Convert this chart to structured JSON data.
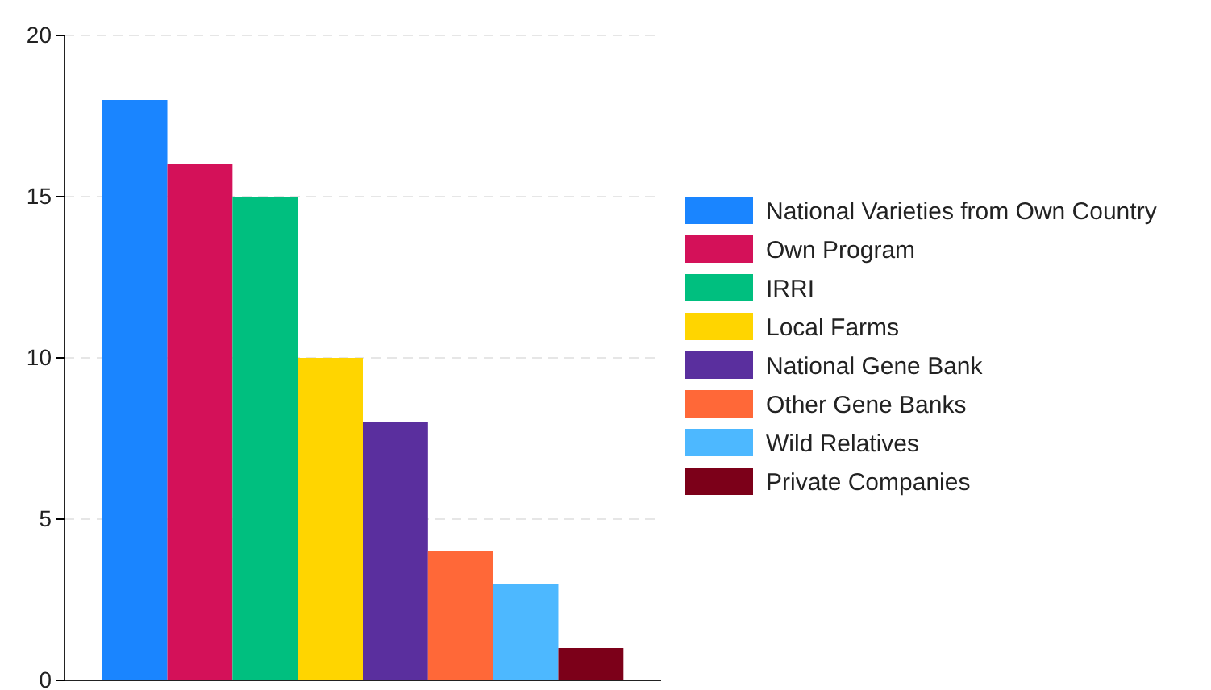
{
  "chart_data": {
    "type": "bar",
    "categories": [
      null
    ],
    "series": [
      {
        "name": "National Varieties from Own Country",
        "color": "#1a85ff",
        "values": [
          18
        ]
      },
      {
        "name": "Own Program",
        "color": "#d41159",
        "values": [
          16
        ]
      },
      {
        "name": "IRRI",
        "color": "#00bf7f",
        "values": [
          15
        ]
      },
      {
        "name": "Local Farms",
        "color": "#ffd500",
        "values": [
          10
        ]
      },
      {
        "name": "National Gene Bank",
        "color": "#5a2f9e",
        "values": [
          8
        ]
      },
      {
        "name": "Other Gene Banks",
        "color": "#ff6838",
        "values": [
          4
        ]
      },
      {
        "name": "Wild Relatives",
        "color": "#4db8ff",
        "values": [
          3
        ]
      },
      {
        "name": "Private Companies",
        "color": "#7c0019",
        "values": [
          1
        ]
      }
    ],
    "ylim": [
      0,
      20
    ],
    "yticks": [
      0,
      5,
      10,
      15,
      20
    ],
    "grid": "y",
    "legend": "right"
  }
}
